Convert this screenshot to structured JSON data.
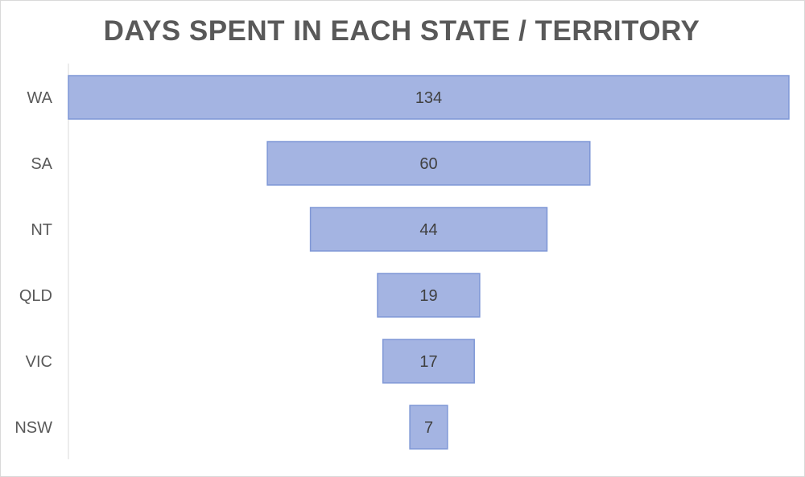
{
  "chart_data": {
    "type": "bar",
    "orientation": "horizontal",
    "style": "funnel",
    "title": "DAYS SPENT IN EACH STATE / TERRITORY",
    "xlabel": "",
    "ylabel": "",
    "categories": [
      "WA",
      "SA",
      "NT",
      "QLD",
      "VIC",
      "NSW"
    ],
    "values": [
      134,
      60,
      44,
      19,
      17,
      7
    ],
    "data_labels": [
      "134",
      "60",
      "44",
      "19",
      "17",
      "7"
    ],
    "xlim": [
      0,
      134
    ],
    "grid": false,
    "legend": "none",
    "colors": {
      "bar_fill": "#a4b4e2",
      "bar_stroke": "#7f97d6",
      "label_text": "#404040",
      "axis_text": "#595959",
      "axis_line": "#d9d9d9"
    }
  }
}
